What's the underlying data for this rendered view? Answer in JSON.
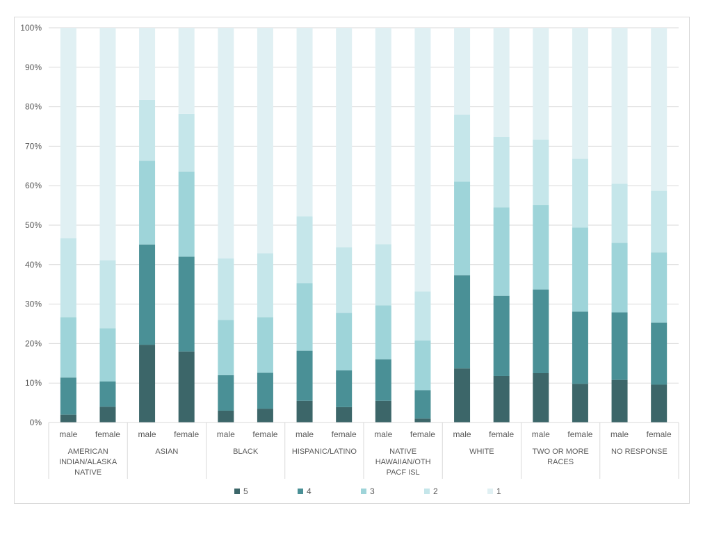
{
  "chart_data": {
    "type": "bar",
    "stacked": true,
    "percent": true,
    "title": "",
    "xlabel": "",
    "ylabel": "",
    "ylim": [
      0,
      100
    ],
    "yticks": [
      "0%",
      "10%",
      "20%",
      "30%",
      "40%",
      "50%",
      "60%",
      "70%",
      "80%",
      "90%",
      "100%"
    ],
    "grid": true,
    "legend_position": "bottom",
    "groups": [
      {
        "label": [
          "AMERICAN",
          "INDIAN/ALASKA",
          "NATIVE"
        ],
        "categories": [
          "male",
          "female"
        ]
      },
      {
        "label": [
          "ASIAN"
        ],
        "categories": [
          "male",
          "female"
        ]
      },
      {
        "label": [
          "BLACK"
        ],
        "categories": [
          "male",
          "female"
        ]
      },
      {
        "label": [
          "HISPANIC/LATINO"
        ],
        "categories": [
          "male",
          "female"
        ]
      },
      {
        "label": [
          "NATIVE",
          "HAWAIIAN/OTH",
          "PACF ISL"
        ],
        "categories": [
          "male",
          "female"
        ]
      },
      {
        "label": [
          "WHITE"
        ],
        "categories": [
          "male",
          "female"
        ]
      },
      {
        "label": [
          "TWO OR MORE",
          "RACES"
        ],
        "categories": [
          "male",
          "female"
        ]
      },
      {
        "label": [
          "NO RESPONSE"
        ],
        "categories": [
          "male",
          "female"
        ]
      }
    ],
    "series": [
      {
        "name": "5",
        "color": "#3c6669",
        "values": [
          2.0,
          4.0,
          19.7,
          18.0,
          3.0,
          3.5,
          5.5,
          3.9,
          5.5,
          1.0,
          13.7,
          11.8,
          12.5,
          9.8,
          10.8,
          9.6
        ]
      },
      {
        "name": "4",
        "color": "#4a9096",
        "values": [
          9.4,
          6.4,
          25.4,
          24.0,
          9.0,
          9.1,
          12.7,
          9.3,
          10.5,
          7.2,
          23.6,
          20.3,
          21.2,
          18.3,
          17.1,
          15.7
        ]
      },
      {
        "name": "3",
        "color": "#9ed4d9",
        "values": [
          15.3,
          13.5,
          21.2,
          21.6,
          14.0,
          14.1,
          17.1,
          14.6,
          13.7,
          12.6,
          23.7,
          22.4,
          21.4,
          21.3,
          17.6,
          17.8
        ]
      },
      {
        "name": "2",
        "color": "#c5e6ea",
        "values": [
          20.0,
          17.2,
          15.4,
          14.6,
          15.6,
          16.2,
          16.9,
          16.6,
          15.5,
          12.4,
          17.0,
          17.9,
          16.6,
          17.4,
          15.0,
          15.6
        ]
      },
      {
        "name": "1",
        "color": "#e0f0f3",
        "values": [
          53.3,
          58.9,
          18.3,
          21.8,
          58.4,
          57.1,
          47.8,
          55.6,
          54.8,
          66.8,
          22.0,
          27.6,
          28.3,
          33.2,
          39.5,
          41.3
        ]
      }
    ]
  }
}
